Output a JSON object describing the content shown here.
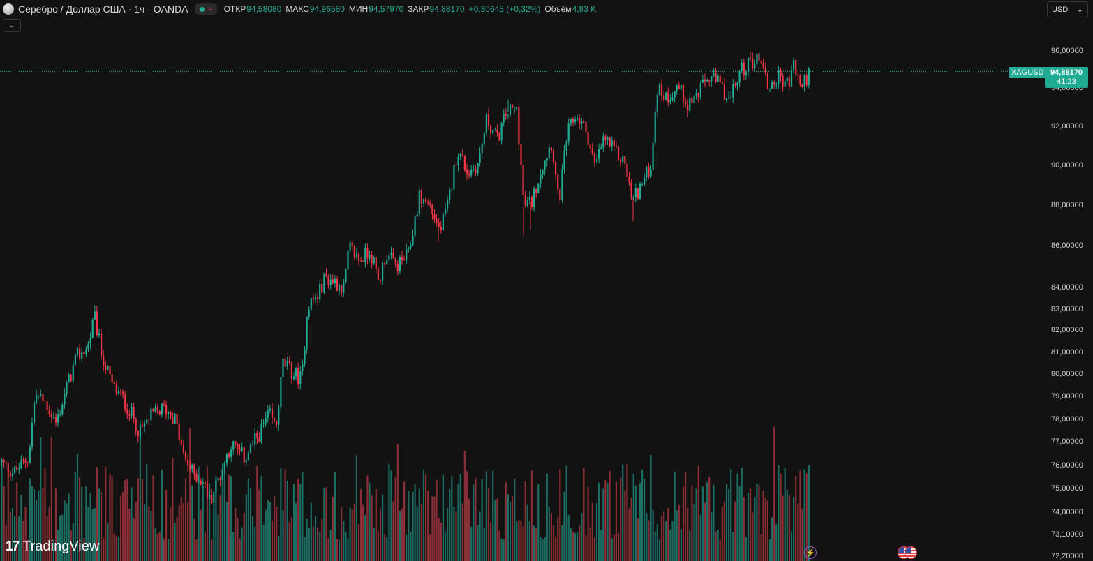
{
  "header": {
    "title": "Серебро / Доллар США · 1ч · OANDA",
    "ohlc": [
      {
        "label": "ОТКР",
        "value": "94,58080"
      },
      {
        "label": "МАКС",
        "value": "94,96580"
      },
      {
        "label": "МИН",
        "value": "94,57970"
      },
      {
        "label": "ЗАКР",
        "value": "94,88170"
      }
    ],
    "change": "+0,30645 (+0,32%)",
    "volume_label": "Объём",
    "volume_value": "4,93 K",
    "wave_icon": "≈"
  },
  "currency": {
    "label": "USD",
    "chevron": "⌄"
  },
  "collapse_icon": "⌄",
  "last_price": {
    "symbol": "XAGUSD",
    "price": "94,88170",
    "countdown": "41:23"
  },
  "brand": {
    "mark": "17",
    "name": "TradingView"
  },
  "colors": {
    "up": "#22ab94",
    "down": "#f23645",
    "up_volume": "#1b6e63",
    "down_volume": "#8c2e35",
    "background": "#121212",
    "accent": "#22ab94"
  },
  "chart_data": {
    "type": "candlestick",
    "symbol": "XAGUSD",
    "interval": "1h",
    "y_axis": {
      "scale": "log",
      "ylim": [
        72.2,
        96.4
      ],
      "tick_labels": [
        "96,00000",
        "94,00000",
        "92,00000",
        "90,00000",
        "88,00000",
        "86,00000",
        "84,00000",
        "83,00000",
        "82,00000",
        "81,00000",
        "80,00000",
        "79,00000",
        "78,00000",
        "77,00000",
        "76,00000",
        "75,00000",
        "74,00000",
        "73,10000",
        "72,20000"
      ]
    },
    "last_close": 94.8817,
    "close_path": [
      [
        0,
        76.2
      ],
      [
        8,
        75.9
      ],
      [
        20,
        75.7
      ],
      [
        40,
        76.3
      ],
      [
        50,
        79.1
      ],
      [
        65,
        78.7
      ],
      [
        80,
        77.8
      ],
      [
        95,
        79.4
      ],
      [
        110,
        80.8
      ],
      [
        125,
        81.2
      ],
      [
        135,
        82.6
      ],
      [
        145,
        80.9
      ],
      [
        160,
        79.5
      ],
      [
        175,
        78.9
      ],
      [
        190,
        78.1
      ],
      [
        200,
        77.4
      ],
      [
        215,
        78.1
      ],
      [
        235,
        78.5
      ],
      [
        250,
        78.0
      ],
      [
        262,
        76.4
      ],
      [
        275,
        75.7
      ],
      [
        290,
        75.3
      ],
      [
        300,
        74.5
      ],
      [
        315,
        75.6
      ],
      [
        330,
        76.9
      ],
      [
        350,
        76.3
      ],
      [
        370,
        77.3
      ],
      [
        385,
        78.2
      ],
      [
        395,
        77.6
      ],
      [
        405,
        80.5
      ],
      [
        420,
        80.0
      ],
      [
        432,
        79.8
      ],
      [
        440,
        83.2
      ],
      [
        455,
        83.6
      ],
      [
        465,
        84.5
      ],
      [
        478,
        84.3
      ],
      [
        492,
        84.0
      ],
      [
        500,
        85.9
      ],
      [
        515,
        85.3
      ],
      [
        530,
        85.8
      ],
      [
        542,
        84.2
      ],
      [
        552,
        85.6
      ],
      [
        568,
        85.0
      ],
      [
        585,
        85.6
      ],
      [
        600,
        88.4
      ],
      [
        615,
        88.0
      ],
      [
        630,
        86.7
      ],
      [
        642,
        88.1
      ],
      [
        655,
        90.8
      ],
      [
        670,
        89.6
      ],
      [
        685,
        90.1
      ],
      [
        697,
        92.4
      ],
      [
        712,
        91.3
      ],
      [
        725,
        92.7
      ],
      [
        740,
        92.9
      ],
      [
        750,
        87.9
      ],
      [
        762,
        88.2
      ],
      [
        775,
        89.9
      ],
      [
        790,
        91.2
      ],
      [
        800,
        88.0
      ],
      [
        812,
        91.6
      ],
      [
        825,
        92.6
      ],
      [
        840,
        91.7
      ],
      [
        852,
        89.9
      ],
      [
        865,
        91.4
      ],
      [
        880,
        90.7
      ],
      [
        895,
        90.1
      ],
      [
        905,
        88.2
      ],
      [
        920,
        89.1
      ],
      [
        933,
        90.1
      ],
      [
        940,
        94.0
      ],
      [
        955,
        93.5
      ],
      [
        970,
        94.1
      ],
      [
        985,
        93.2
      ],
      [
        1000,
        93.7
      ],
      [
        1015,
        94.6
      ],
      [
        1030,
        94.2
      ],
      [
        1045,
        93.3
      ],
      [
        1060,
        94.9
      ],
      [
        1075,
        95.4
      ],
      [
        1090,
        95.6
      ],
      [
        1100,
        94.0
      ],
      [
        1115,
        94.6
      ],
      [
        1130,
        94.2
      ],
      [
        1137,
        95.3
      ],
      [
        1147,
        94.0
      ],
      [
        1160,
        94.9
      ]
    ],
    "spikes": [
      {
        "x": 750,
        "low": 86.5
      },
      {
        "x": 907,
        "low": 87.2
      },
      {
        "x": 760,
        "low": 86.8
      },
      {
        "x": 628,
        "low": 86.2
      },
      {
        "x": 728,
        "high": 93.4
      },
      {
        "x": 135,
        "high": 82.7
      },
      {
        "x": 1088,
        "high": 95.9
      }
    ],
    "volume": {
      "max_relative": 1.0
    }
  }
}
